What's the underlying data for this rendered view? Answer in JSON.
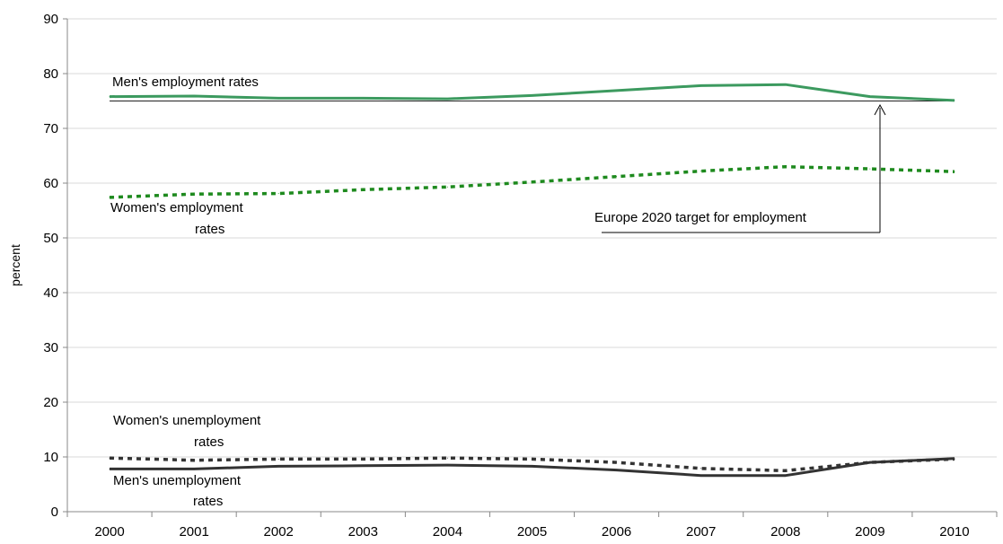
{
  "chart_data": {
    "type": "line",
    "title": "",
    "xlabel": "",
    "ylabel": "percent",
    "ylim": [
      0,
      90
    ],
    "yticks": [
      0,
      10,
      20,
      30,
      40,
      50,
      60,
      70,
      80,
      90
    ],
    "grid": true,
    "legend": "none",
    "categories": [
      "2000",
      "2001",
      "2002",
      "2003",
      "2004",
      "2005",
      "2006",
      "2007",
      "2008",
      "2009",
      "2010"
    ],
    "series": [
      {
        "name": "Men's employment rates",
        "values": [
          75.8,
          75.9,
          75.5,
          75.5,
          75.4,
          76.0,
          76.9,
          77.8,
          78.0,
          75.8,
          75.1
        ],
        "color": "#3c9a5f",
        "style": "solid"
      },
      {
        "name": "Women's employment rates",
        "values": [
          57.4,
          58.0,
          58.1,
          58.8,
          59.3,
          60.2,
          61.2,
          62.2,
          63.0,
          62.6,
          62.1
        ],
        "color": "#1e8a1e",
        "style": "dotted"
      },
      {
        "name": "Women's unemployment rates",
        "values": [
          9.8,
          9.4,
          9.6,
          9.6,
          9.8,
          9.6,
          9.0,
          7.9,
          7.5,
          9.0,
          9.6
        ],
        "color": "#333333",
        "style": "dotted"
      },
      {
        "name": "Men's unemployment rates",
        "values": [
          7.8,
          7.8,
          8.3,
          8.4,
          8.5,
          8.3,
          7.6,
          6.6,
          6.6,
          9.0,
          9.7
        ],
        "color": "#333333",
        "style": "solid"
      }
    ],
    "reference_line": {
      "label": "Europe 2020 target for employment",
      "value": 75
    },
    "annotations": {
      "men_employment": "Men's employment rates",
      "women_employment_1": "Women's employment",
      "women_employment_2": "rates",
      "women_unemployment_1": "Women's unemployment",
      "women_unemployment_2": "rates",
      "men_unemployment_1": "Men's unemployment",
      "men_unemployment_2": "rates",
      "target": "Europe 2020 target for employment"
    }
  }
}
